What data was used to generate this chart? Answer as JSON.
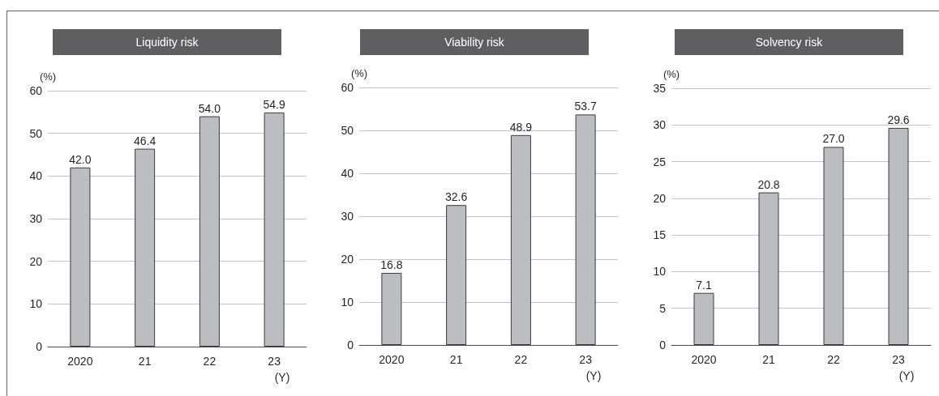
{
  "chart_data": [
    {
      "type": "bar",
      "title": "Liquidity risk",
      "ylabel": "(%)",
      "xlabel": "(Y)",
      "categories": [
        "2020",
        "21",
        "22",
        "23"
      ],
      "values": [
        42.0,
        46.4,
        54.0,
        54.9
      ],
      "value_labels": [
        "42.0",
        "46.4",
        "54.0",
        "54.9"
      ],
      "color": "#bcbdc0",
      "ylim": [
        0,
        60
      ],
      "yticks": [
        0,
        10,
        20,
        30,
        40,
        50,
        60
      ],
      "grid": "y"
    },
    {
      "type": "bar",
      "title": "Viability risk",
      "ylabel": "(%)",
      "xlabel": "(Y)",
      "categories": [
        "2020",
        "21",
        "22",
        "23"
      ],
      "values": [
        16.8,
        32.6,
        48.9,
        53.7
      ],
      "value_labels": [
        "16.8",
        "32.6",
        "48.9",
        "53.7"
      ],
      "color": "#bcbdc0",
      "ylim": [
        0,
        60
      ],
      "yticks": [
        0,
        10,
        20,
        30,
        40,
        50,
        60
      ],
      "grid": "y"
    },
    {
      "type": "bar",
      "title": "Solvency risk",
      "ylabel": "(%)",
      "xlabel": "(Y)",
      "categories": [
        "2020",
        "21",
        "22",
        "23"
      ],
      "values": [
        7.1,
        20.8,
        27.0,
        29.6
      ],
      "value_labels": [
        "7.1",
        "20.8",
        "27.0",
        "29.6"
      ],
      "color": "#bcbdc0",
      "ylim": [
        0,
        35
      ],
      "yticks": [
        0,
        5,
        10,
        15,
        20,
        25,
        30,
        35
      ],
      "grid": "y"
    }
  ]
}
